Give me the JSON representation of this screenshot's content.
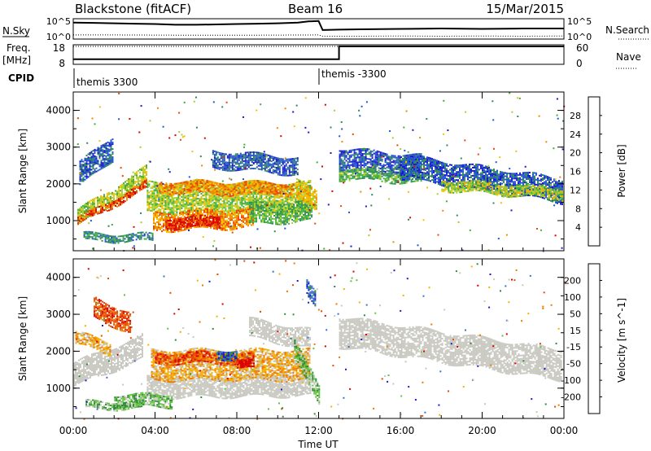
{
  "header": {
    "station": "Blackstone (fitACF)",
    "beam": "Beam 16",
    "date": "15/Mar/2015"
  },
  "noise_panel": {
    "left_label": "N.Sky",
    "right_label": "N.Search",
    "left_ticks": [
      "10^5",
      "10^0"
    ],
    "right_ticks": [
      "10^5",
      "10^0"
    ]
  },
  "freq_panel": {
    "left_label_top": "Freq.",
    "left_label_bottom": "[MHz]",
    "right_label": "Nave",
    "left_ticks": [
      "18",
      "8"
    ],
    "right_ticks": [
      "60",
      "0"
    ]
  },
  "cpid_panel": {
    "label": "CPID",
    "segments": [
      {
        "label": "themis 3300",
        "start_hour": 0
      },
      {
        "label": "themis -3300",
        "start_hour": 12.2
      }
    ]
  },
  "colors": {
    "power": [
      "#1a1acc",
      "#2454d0",
      "#2f8a5a",
      "#3fae3f",
      "#a7cf2a",
      "#f5c000",
      "#f08a00",
      "#e84800",
      "#dd0000"
    ],
    "velocity": [
      "#1a1acc",
      "#3a6ed8",
      "#2e8a3a",
      "#62c23a",
      "#c8c8c0",
      "#c8c8c0",
      "#f3b000",
      "#f07800",
      "#e54a00",
      "#dd0000"
    ],
    "ground_scatter": "#c8c8c0"
  },
  "chart_data": [
    {
      "type": "line",
      "name": "noise-sky-search",
      "series": [
        {
          "name": "N.Sky",
          "style": "solid",
          "x": [
            0,
            1,
            2,
            3,
            4,
            5,
            6,
            7,
            8,
            9,
            10,
            11,
            11.5,
            12,
            12.2,
            13,
            14,
            16,
            18,
            20,
            22,
            24
          ],
          "y": [
            4.2,
            4.1,
            4.0,
            3.9,
            3.8,
            3.6,
            3.6,
            3.7,
            3.8,
            3.9,
            4.0,
            4.2,
            4.5,
            4.6,
            2.2,
            2.3,
            2.4,
            2.5,
            2.6,
            2.5,
            2.6,
            2.6
          ]
        },
        {
          "name": "N.Search",
          "style": "dotted",
          "x": [
            0,
            2,
            4,
            6,
            8,
            10,
            12,
            12.2,
            14,
            16,
            18,
            20,
            22,
            24
          ],
          "y": [
            0.9,
            0.9,
            0.85,
            0.8,
            0.8,
            0.85,
            0.9,
            0.55,
            0.55,
            0.6,
            0.55,
            0.6,
            0.55,
            0.6
          ]
        }
      ],
      "ylim": [
        0,
        5
      ]
    },
    {
      "type": "line",
      "name": "frequency-nave",
      "series": [
        {
          "name": "Freq.",
          "style": "solid",
          "x": [
            0,
            13,
            13,
            24
          ],
          "y": [
            10.5,
            10.5,
            18,
            18
          ]
        },
        {
          "name": "Nave",
          "style": "dotted",
          "x": [
            0,
            24
          ],
          "y": [
            18,
            18
          ]
        }
      ],
      "ylim": [
        8,
        18
      ]
    },
    {
      "type": "heatmap",
      "name": "power",
      "ylabel": "Slant Range [km]",
      "colorbar_label": "Power [dB]",
      "colorbar_ticks": [
        "4",
        "8",
        "12",
        "16",
        "20",
        "24",
        "28"
      ],
      "xlim": [
        0,
        24
      ],
      "ylim": [
        180,
        4500
      ],
      "yticks": [
        "1000",
        "2000",
        "3000",
        "4000"
      ],
      "scatter_regions": [
        {
          "x0": 0.2,
          "x1": 3.6,
          "y_start": 1100,
          "y_end": 2300,
          "width": 420,
          "level": 4
        },
        {
          "x0": 0.2,
          "x1": 3.6,
          "y_start": 1000,
          "y_end": 2000,
          "width": 200,
          "level": 7
        },
        {
          "x0": 0.3,
          "x1": 1.9,
          "y_start": 2300,
          "y_end": 3000,
          "width": 650,
          "level": 1
        },
        {
          "x0": 0.5,
          "x1": 3.9,
          "y_start": 580,
          "y_end": 560,
          "width": 200,
          "level": 2
        },
        {
          "x0": 3.6,
          "x1": 11.6,
          "y_start": 1650,
          "y_end": 1650,
          "width": 800,
          "level": 4
        },
        {
          "x0": 4.2,
          "x1": 10.8,
          "y_start": 1950,
          "y_end": 1900,
          "width": 350,
          "level": 6
        },
        {
          "x0": 3.9,
          "x1": 8.8,
          "y_start": 1000,
          "y_end": 1100,
          "width": 500,
          "level": 6
        },
        {
          "x0": 4.5,
          "x1": 7.2,
          "y_start": 950,
          "y_end": 1000,
          "width": 280,
          "level": 8
        },
        {
          "x0": 8.6,
          "x1": 11.7,
          "y_start": 1200,
          "y_end": 1300,
          "width": 550,
          "level": 3
        },
        {
          "x0": 10.9,
          "x1": 11.9,
          "y_start": 1900,
          "y_end": 1500,
          "width": 550,
          "level": 5
        },
        {
          "x0": 6.8,
          "x1": 11.0,
          "y_start": 2700,
          "y_end": 2500,
          "width": 450,
          "level": 1
        },
        {
          "x0": 13.0,
          "x1": 17.0,
          "y_start": 2700,
          "y_end": 2500,
          "width": 600,
          "level": 1
        },
        {
          "x0": 13.0,
          "x1": 17.0,
          "y_start": 2300,
          "y_end": 2200,
          "width": 300,
          "level": 3
        },
        {
          "x0": 16.0,
          "x1": 23.9,
          "y_start": 2500,
          "y_end": 1850,
          "width": 650,
          "level": 1
        },
        {
          "x0": 18.0,
          "x1": 23.9,
          "y_start": 2000,
          "y_end": 1750,
          "width": 280,
          "level": 4
        }
      ],
      "ground_scatter_regions": []
    },
    {
      "type": "heatmap",
      "name": "velocity",
      "ylabel": "Slant Range [km]",
      "colorbar_label": "Velocity [m s^-1]",
      "colorbar_ticks": [
        "-200",
        "-100",
        "-50",
        "-15",
        "15",
        "50",
        "100",
        "200"
      ],
      "xlim": [
        0,
        24
      ],
      "ylim": [
        180,
        4500
      ],
      "yticks": [
        "1000",
        "2000",
        "3000",
        "4000"
      ],
      "scatter_regions": [
        {
          "x0": 1.0,
          "x1": 2.8,
          "y_start": 3200,
          "y_end": 2800,
          "width": 550,
          "level": 8
        },
        {
          "x0": 0.1,
          "x1": 1.8,
          "y_start": 2400,
          "y_end": 2100,
          "width": 350,
          "level": 6
        },
        {
          "x0": 3.8,
          "x1": 11.6,
          "y_start": 1650,
          "y_end": 1650,
          "width": 800,
          "level": 6
        },
        {
          "x0": 4.0,
          "x1": 8.8,
          "y_start": 1850,
          "y_end": 1850,
          "width": 300,
          "level": 8
        },
        {
          "x0": 7.0,
          "x1": 8.0,
          "y_start": 1950,
          "y_end": 1950,
          "width": 250,
          "level": 1
        },
        {
          "x0": 8.0,
          "x1": 8.8,
          "y_start": 1700,
          "y_end": 1650,
          "width": 200,
          "level": 9
        },
        {
          "x0": 10.8,
          "x1": 12.0,
          "y_start": 2100,
          "y_end": 800,
          "width": 500,
          "level": 3
        },
        {
          "x0": 2.0,
          "x1": 4.8,
          "y_start": 700,
          "y_end": 700,
          "width": 350,
          "level": 3
        },
        {
          "x0": 0.6,
          "x1": 3.4,
          "y_start": 560,
          "y_end": 560,
          "width": 180,
          "level": 3
        },
        {
          "x0": 11.4,
          "x1": 11.8,
          "y_start": 3700,
          "y_end": 3400,
          "width": 400,
          "level": 1
        }
      ],
      "ground_scatter_regions": [
        {
          "x0": 0.0,
          "x1": 3.4,
          "y_start": 1400,
          "y_end": 2150,
          "width": 650
        },
        {
          "x0": 3.6,
          "x1": 11.6,
          "y_start": 1050,
          "y_end": 1100,
          "width": 550
        },
        {
          "x0": 8.6,
          "x1": 11.6,
          "y_start": 2650,
          "y_end": 2350,
          "width": 500
        },
        {
          "x0": 13.0,
          "x1": 23.9,
          "y_start": 2550,
          "y_end": 1650,
          "width": 800
        }
      ]
    }
  ],
  "axes": {
    "xlabel": "Time UT",
    "xticks": [
      "00:00",
      "04:00",
      "08:00",
      "12:00",
      "16:00",
      "20:00",
      "00:00"
    ],
    "xtick_hours": [
      0,
      4,
      8,
      12,
      16,
      20,
      24
    ]
  }
}
